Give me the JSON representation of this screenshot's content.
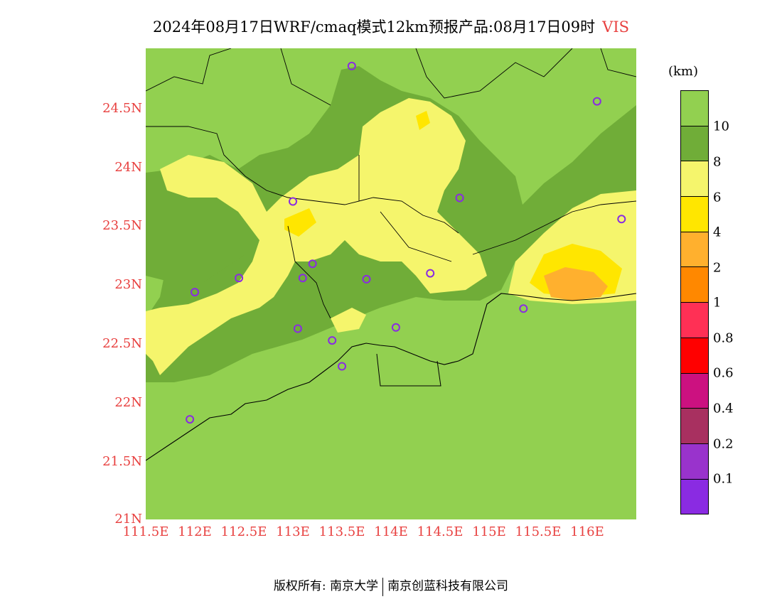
{
  "title": {
    "text": "2024年08月17日WRF/cmaq模式12km预报产品:08月17日09时",
    "variable": "VIS"
  },
  "axes": {
    "y_ticks": [
      "24.5N",
      "24N",
      "23.5N",
      "23N",
      "22.5N",
      "22N",
      "21.5N",
      "21N"
    ],
    "x_ticks": [
      "111.5E",
      "112E",
      "112.5E",
      "113E",
      "113.5E",
      "114E",
      "114.5E",
      "115E",
      "115.5E",
      "116E"
    ]
  },
  "colorbar": {
    "unit": "(km)",
    "levels": [
      "10",
      "8",
      "6",
      "4",
      "2",
      "1",
      "0.8",
      "0.6",
      "0.4",
      "0.2",
      "0.1"
    ],
    "colors": [
      "#92d050",
      "#70ad38",
      "#f5f56c",
      "#ffe600",
      "#ffb02e",
      "#ff8800",
      "#ff3055",
      "#ff0000",
      "#cc1180",
      "#a83060",
      "#9933cc",
      "#8a2be2"
    ]
  },
  "chart_data": {
    "type": "heatmap",
    "lon_range": [
      111.5,
      116.5
    ],
    "lat_range": [
      21.0,
      25.0
    ],
    "stations": [
      {
        "lon": 113.6,
        "lat": 24.85
      },
      {
        "lon": 116.1,
        "lat": 24.55
      },
      {
        "lon": 113.0,
        "lat": 23.7
      },
      {
        "lon": 114.7,
        "lat": 23.73
      },
      {
        "lon": 116.35,
        "lat": 23.55
      },
      {
        "lon": 112.45,
        "lat": 23.05
      },
      {
        "lon": 112.0,
        "lat": 22.93
      },
      {
        "lon": 113.1,
        "lat": 23.05
      },
      {
        "lon": 113.2,
        "lat": 23.17
      },
      {
        "lon": 113.75,
        "lat": 23.04
      },
      {
        "lon": 114.4,
        "lat": 23.09
      },
      {
        "lon": 115.35,
        "lat": 22.79
      },
      {
        "lon": 113.05,
        "lat": 22.62
      },
      {
        "lon": 113.4,
        "lat": 22.52
      },
      {
        "lon": 114.05,
        "lat": 22.63
      },
      {
        "lon": 113.5,
        "lat": 22.3
      },
      {
        "lon": 111.95,
        "lat": 21.85
      }
    ]
  },
  "footer": {
    "left": "版权所有: 南京大学",
    "right": "南京创蓝科技有限公司"
  }
}
